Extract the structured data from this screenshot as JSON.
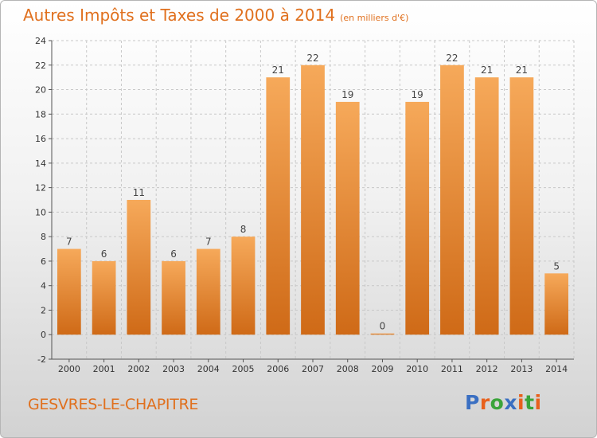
{
  "header": {
    "title": "Autres Impôts et Taxes de 2000 à 2014",
    "unit": "(en milliers d'€)"
  },
  "commune": "GESVRES-LE-CHAPITRE",
  "logo": {
    "text": "Proxiti",
    "letter_colors": [
      "#3a6fc2",
      "#e8601c",
      "#3aa43a",
      "#3a6fc2",
      "#e8601c",
      "#3aa43a",
      "#e8601c"
    ]
  },
  "colors": {
    "title": "#e0701e",
    "bar_light": "#f6a95a",
    "bar_dark": "#cf6a17",
    "grid": "#c8c8c8"
  },
  "chart_data": {
    "type": "bar",
    "categories": [
      "2000",
      "2001",
      "2002",
      "2003",
      "2004",
      "2005",
      "2006",
      "2007",
      "2008",
      "2009",
      "2010",
      "2011",
      "2012",
      "2013",
      "2014"
    ],
    "values": [
      7,
      6,
      11,
      6,
      7,
      8,
      21,
      22,
      19,
      0,
      19,
      22,
      21,
      21,
      5
    ],
    "ylim": [
      -2,
      24
    ],
    "yticks": [
      -2,
      0,
      2,
      4,
      6,
      8,
      10,
      12,
      14,
      16,
      18,
      20,
      22,
      24
    ],
    "grid": true,
    "data_labels": true
  }
}
